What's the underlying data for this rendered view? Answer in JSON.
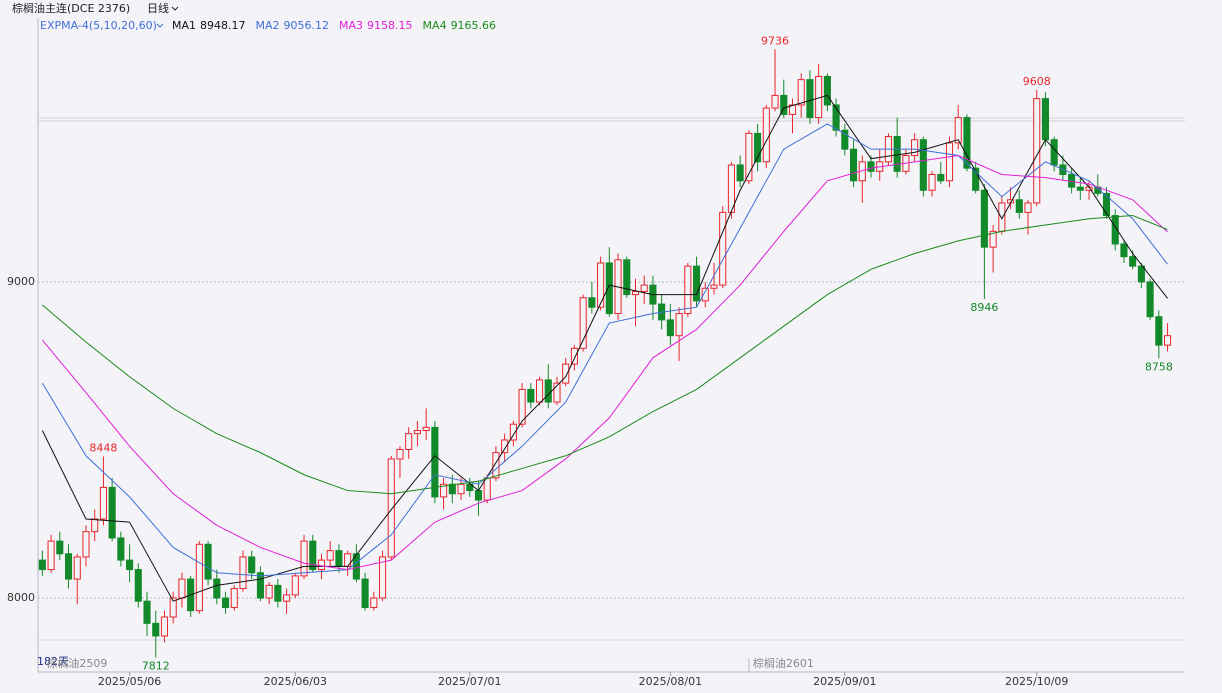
{
  "chart_data": {
    "type": "candlestick",
    "title": "棕榈油主连(DCE 2376)",
    "period": "日线",
    "indicator": "EXPMA-4(5,10,20,60)",
    "days_label": "182天",
    "up_color": "#e8262b",
    "down_color": "#128a2a",
    "ylim": [
      7766,
      9835
    ],
    "yticks": [
      8000,
      9000
    ],
    "grid": true,
    "xlim": [
      -0.5,
      131
    ],
    "xticks": [
      {
        "value": 10,
        "label": "2025/05/06"
      },
      {
        "value": 29,
        "label": "2025/06/03"
      },
      {
        "value": 49,
        "label": "2025/07/01"
      },
      {
        "value": 72,
        "label": "2025/08/01"
      },
      {
        "value": 92,
        "label": "2025/09/01"
      },
      {
        "value": 114,
        "label": "2025/10/09"
      }
    ],
    "contracts": [
      {
        "at": 0,
        "label": "棕榈油2509"
      },
      {
        "at": 81,
        "label": "棕榈油2601"
      }
    ],
    "ohlc": [
      [
        8120,
        8150,
        8070,
        8090
      ],
      [
        8090,
        8200,
        8080,
        8180
      ],
      [
        8180,
        8210,
        8120,
        8140
      ],
      [
        8140,
        8170,
        8030,
        8060
      ],
      [
        8060,
        8140,
        7980,
        8130
      ],
      [
        8130,
        8230,
        8100,
        8210
      ],
      [
        8210,
        8280,
        8180,
        8250
      ],
      [
        8250,
        8448,
        8230,
        8350
      ],
      [
        8350,
        8380,
        8180,
        8190
      ],
      [
        8190,
        8210,
        8100,
        8120
      ],
      [
        8120,
        8170,
        8050,
        8090
      ],
      [
        8090,
        8110,
        7970,
        7990
      ],
      [
        7990,
        8020,
        7880,
        7920
      ],
      [
        7920,
        7960,
        7812,
        7880
      ],
      [
        7880,
        7960,
        7860,
        7940
      ],
      [
        7940,
        8020,
        7920,
        8000
      ],
      [
        8000,
        8080,
        7970,
        8060
      ],
      [
        8060,
        8070,
        7940,
        7960
      ],
      [
        7960,
        8180,
        7950,
        8170
      ],
      [
        8170,
        8180,
        8040,
        8060
      ],
      [
        8060,
        8090,
        7980,
        8000
      ],
      [
        8000,
        8020,
        7950,
        7970
      ],
      [
        7970,
        8040,
        7960,
        8030
      ],
      [
        8030,
        8150,
        8020,
        8130
      ],
      [
        8130,
        8150,
        8060,
        8080
      ],
      [
        8080,
        8100,
        7990,
        8000
      ],
      [
        8000,
        8050,
        7980,
        8040
      ],
      [
        8040,
        8060,
        7970,
        7990
      ],
      [
        7990,
        8030,
        7950,
        8010
      ],
      [
        8010,
        8080,
        8000,
        8070
      ],
      [
        8070,
        8200,
        8060,
        8180
      ],
      [
        8180,
        8200,
        8080,
        8090
      ],
      [
        8090,
        8140,
        8060,
        8120
      ],
      [
        8120,
        8180,
        8100,
        8150
      ],
      [
        8150,
        8170,
        8080,
        8100
      ],
      [
        8100,
        8150,
        8070,
        8140
      ],
      [
        8140,
        8170,
        8050,
        8060
      ],
      [
        8060,
        8080,
        7960,
        7970
      ],
      [
        7970,
        8020,
        7960,
        8000
      ],
      [
        8000,
        8150,
        7990,
        8130
      ],
      [
        8130,
        8450,
        8120,
        8440
      ],
      [
        8440,
        8480,
        8380,
        8470
      ],
      [
        8470,
        8540,
        8440,
        8520
      ],
      [
        8520,
        8560,
        8480,
        8530
      ],
      [
        8530,
        8600,
        8500,
        8540
      ],
      [
        8540,
        8560,
        8300,
        8320
      ],
      [
        8320,
        8380,
        8280,
        8360
      ],
      [
        8360,
        8390,
        8300,
        8330
      ],
      [
        8330,
        8380,
        8310,
        8360
      ],
      [
        8360,
        8380,
        8320,
        8340
      ],
      [
        8340,
        8370,
        8260,
        8310
      ],
      [
        8310,
        8390,
        8300,
        8380
      ],
      [
        8380,
        8480,
        8370,
        8460
      ],
      [
        8460,
        8520,
        8430,
        8500
      ],
      [
        8500,
        8560,
        8480,
        8550
      ],
      [
        8550,
        8680,
        8540,
        8660
      ],
      [
        8660,
        8680,
        8600,
        8620
      ],
      [
        8620,
        8700,
        8610,
        8690
      ],
      [
        8690,
        8740,
        8600,
        8620
      ],
      [
        8620,
        8700,
        8610,
        8680
      ],
      [
        8680,
        8760,
        8670,
        8740
      ],
      [
        8740,
        8800,
        8720,
        8790
      ],
      [
        8790,
        8960,
        8780,
        8950
      ],
      [
        8950,
        9000,
        8900,
        8920
      ],
      [
        8920,
        9080,
        8910,
        9060
      ],
      [
        9060,
        9110,
        8890,
        8900
      ],
      [
        8900,
        9090,
        8880,
        9070
      ],
      [
        9070,
        9080,
        8950,
        8960
      ],
      [
        8960,
        9010,
        8860,
        8970
      ],
      [
        8970,
        9020,
        8930,
        8990
      ],
      [
        8990,
        9020,
        8880,
        8930
      ],
      [
        8930,
        8960,
        8850,
        8880
      ],
      [
        8880,
        8930,
        8800,
        8830
      ],
      [
        8830,
        8920,
        8750,
        8900
      ],
      [
        8900,
        9060,
        8890,
        9050
      ],
      [
        9050,
        9080,
        8920,
        8940
      ],
      [
        8940,
        9000,
        8920,
        8980
      ],
      [
        8980,
        9060,
        8960,
        8990
      ],
      [
        8990,
        9240,
        8980,
        9220
      ],
      [
        9220,
        9380,
        9200,
        9370
      ],
      [
        9370,
        9400,
        9300,
        9320
      ],
      [
        9320,
        9480,
        9310,
        9470
      ],
      [
        9470,
        9500,
        9350,
        9380
      ],
      [
        9380,
        9560,
        9360,
        9550
      ],
      [
        9550,
        9736,
        9540,
        9590
      ],
      [
        9590,
        9640,
        9520,
        9530
      ],
      [
        9530,
        9580,
        9470,
        9560
      ],
      [
        9560,
        9660,
        9520,
        9640
      ],
      [
        9640,
        9670,
        9500,
        9520
      ],
      [
        9520,
        9690,
        9500,
        9650
      ],
      [
        9650,
        9660,
        9540,
        9560
      ],
      [
        9560,
        9580,
        9460,
        9480
      ],
      [
        9480,
        9500,
        9400,
        9420
      ],
      [
        9420,
        9450,
        9300,
        9320
      ],
      [
        9320,
        9400,
        9250,
        9380
      ],
      [
        9380,
        9400,
        9330,
        9350
      ],
      [
        9350,
        9420,
        9320,
        9380
      ],
      [
        9380,
        9470,
        9370,
        9460
      ],
      [
        9460,
        9520,
        9330,
        9350
      ],
      [
        9350,
        9420,
        9340,
        9400
      ],
      [
        9400,
        9470,
        9380,
        9450
      ],
      [
        9450,
        9460,
        9270,
        9290
      ],
      [
        9290,
        9350,
        9270,
        9340
      ],
      [
        9340,
        9380,
        9310,
        9320
      ],
      [
        9320,
        9460,
        9300,
        9440
      ],
      [
        9440,
        9560,
        9420,
        9520
      ],
      [
        9520,
        9530,
        9350,
        9360
      ],
      [
        9360,
        9380,
        9280,
        9290
      ],
      [
        9290,
        9310,
        8946,
        9110
      ],
      [
        9110,
        9180,
        9030,
        9160
      ],
      [
        9160,
        9270,
        9150,
        9250
      ],
      [
        9250,
        9300,
        9230,
        9260
      ],
      [
        9260,
        9290,
        9200,
        9220
      ],
      [
        9220,
        9260,
        9150,
        9250
      ],
      [
        9250,
        9608,
        9240,
        9580
      ],
      [
        9580,
        9600,
        9430,
        9450
      ],
      [
        9450,
        9460,
        9350,
        9370
      ],
      [
        9370,
        9400,
        9320,
        9340
      ],
      [
        9340,
        9360,
        9280,
        9300
      ],
      [
        9300,
        9330,
        9260,
        9290
      ],
      [
        9290,
        9320,
        9260,
        9300
      ],
      [
        9300,
        9340,
        9270,
        9280
      ],
      [
        9280,
        9300,
        9200,
        9210
      ],
      [
        9210,
        9230,
        9100,
        9120
      ],
      [
        9120,
        9130,
        9060,
        9080
      ],
      [
        9080,
        9100,
        9040,
        9050
      ],
      [
        9050,
        9060,
        8980,
        9000
      ],
      [
        9000,
        9010,
        8880,
        8890
      ],
      [
        8890,
        8910,
        8758,
        8800
      ],
      [
        8800,
        8870,
        8780,
        8830
      ]
    ],
    "highlights": [
      {
        "candle": 7,
        "part": 1
      },
      {
        "candle": 13,
        "part": 2
      },
      {
        "candle": 84,
        "part": 1
      },
      {
        "candle": 108,
        "part": 2
      },
      {
        "candle": 114,
        "part": 1
      },
      {
        "candle": 128,
        "part": 2
      }
    ],
    "ma_x": [
      0,
      5,
      10,
      15,
      20,
      25,
      30,
      35,
      40,
      45,
      50,
      55,
      60,
      65,
      70,
      75,
      80,
      85,
      90,
      95,
      100,
      105,
      110,
      115,
      120,
      125,
      129
    ],
    "series": [
      {
        "name": "MA1",
        "color": "#111111",
        "values": [
          8530,
          8250,
          8240,
          7990,
          8040,
          8060,
          8100,
          8100,
          8280,
          8450,
          8340,
          8560,
          8700,
          8990,
          8960,
          8960,
          9290,
          9550,
          9590,
          9390,
          9410,
          9450,
          9200,
          9450,
          9300,
          9090,
          8948.17
        ]
      },
      {
        "name": "MA2",
        "color": "#3f6fd8",
        "values": [
          8680,
          8450,
          8320,
          8160,
          8080,
          8070,
          8080,
          8090,
          8200,
          8390,
          8360,
          8480,
          8620,
          8870,
          8900,
          8920,
          9170,
          9420,
          9500,
          9420,
          9420,
          9400,
          9270,
          9380,
          9320,
          9200,
          9056.12
        ]
      },
      {
        "name": "MA3",
        "color": "#e020d8",
        "values": [
          8816,
          8650,
          8480,
          8330,
          8230,
          8160,
          8110,
          8090,
          8120,
          8240,
          8300,
          8340,
          8440,
          8570,
          8760,
          8850,
          8990,
          9160,
          9320,
          9360,
          9380,
          9400,
          9340,
          9330,
          9310,
          9260,
          9158.15
        ]
      },
      {
        "name": "MA4",
        "color": "#1a8a1a",
        "values": [
          8927,
          8810,
          8700,
          8600,
          8520,
          8460,
          8390,
          8340,
          8330,
          8350,
          8370,
          8410,
          8450,
          8510,
          8590,
          8660,
          8760,
          8860,
          8960,
          9040,
          9090,
          9130,
          9160,
          9180,
          9200,
          9210,
          9165.66
        ]
      }
    ]
  }
}
